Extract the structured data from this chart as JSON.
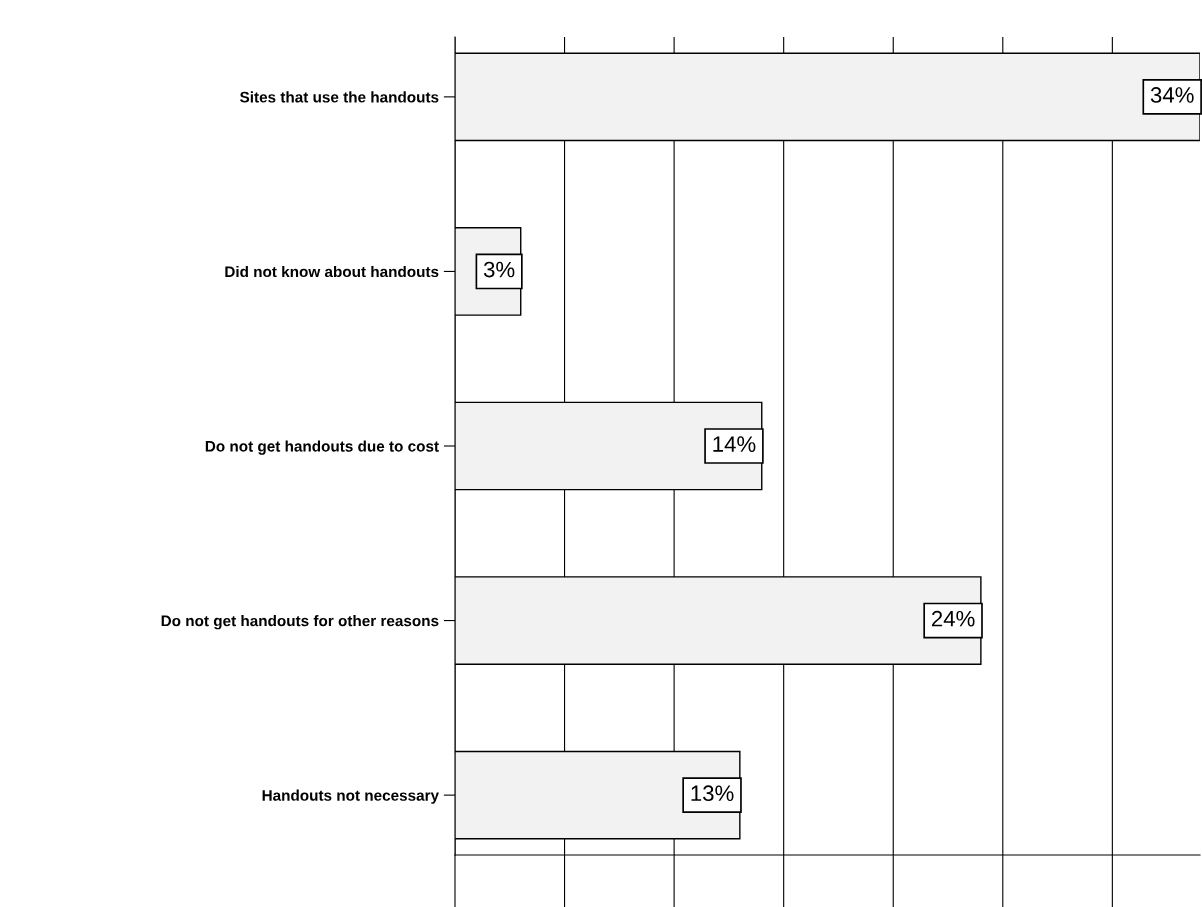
{
  "chart_data": {
    "type": "bar",
    "orientation": "horizontal",
    "categories": [
      "Sites that use the handouts",
      "Did not know about handouts",
      "Do not get handouts due to cost",
      "Do not get handouts for other reasons",
      "Handouts not necessary"
    ],
    "values": [
      34,
      3,
      14,
      24,
      13
    ],
    "value_labels": [
      "34%",
      "3%",
      "14%",
      "24%",
      "13%"
    ],
    "color": "#f2f2f2",
    "xlim": [
      0,
      34
    ],
    "xticks": [
      {
        "value": 0,
        "label": null
      },
      {
        "value": 5,
        "label": null
      },
      {
        "value": 10,
        "label": null
      },
      {
        "value": 15,
        "label": null
      },
      {
        "value": 20,
        "label": null
      },
      {
        "value": 25,
        "label": null
      },
      {
        "value": 30,
        "label": null
      }
    ],
    "tick_labels": "y",
    "grid": "x",
    "legend": false
  }
}
